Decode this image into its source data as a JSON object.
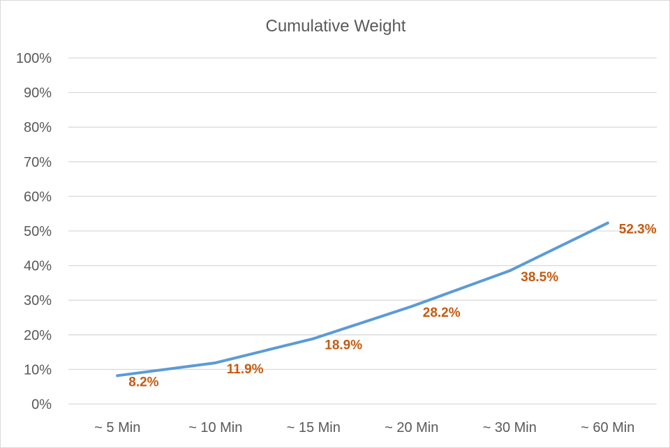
{
  "chart_data": {
    "type": "line",
    "title": "Cumulative Weight",
    "xlabel": "",
    "ylabel": "",
    "categories": [
      "~ 5 Min",
      "~ 10 Min",
      "~ 15 Min",
      "~ 20 Min",
      "~ 30 Min",
      "~ 60 Min"
    ],
    "series": [
      {
        "values": [
          8.2,
          11.9,
          18.9,
          28.2,
          38.5,
          52.3
        ],
        "labels": [
          "8.2%",
          "11.9%",
          "18.9%",
          "28.2%",
          "38.5%",
          "52.3%"
        ]
      }
    ],
    "ylim": [
      0,
      100
    ],
    "yticks": [
      "0%",
      "10%",
      "20%",
      "30%",
      "40%",
      "50%",
      "60%",
      "70%",
      "80%",
      "90%",
      "100%"
    ],
    "grid": "horizontal",
    "legend": "none",
    "colors": {
      "line": "#5b9bd5",
      "data_label": "#c55a11",
      "gridline": "#d9d9d9",
      "axis_text": "#595959"
    }
  }
}
